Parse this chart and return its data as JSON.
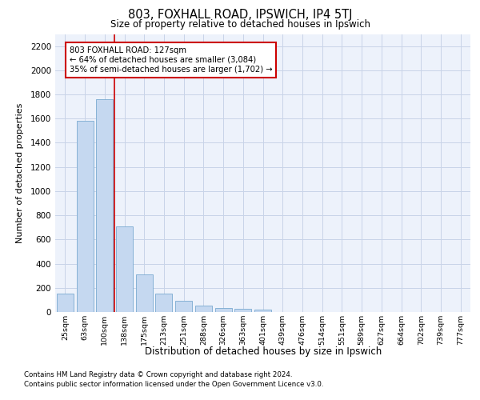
{
  "title": "803, FOXHALL ROAD, IPSWICH, IP4 5TJ",
  "subtitle": "Size of property relative to detached houses in Ipswich",
  "xlabel": "Distribution of detached houses by size in Ipswich",
  "ylabel": "Number of detached properties",
  "categories": [
    "25sqm",
    "63sqm",
    "100sqm",
    "138sqm",
    "175sqm",
    "213sqm",
    "251sqm",
    "288sqm",
    "326sqm",
    "363sqm",
    "401sqm",
    "439sqm",
    "476sqm",
    "514sqm",
    "551sqm",
    "589sqm",
    "627sqm",
    "664sqm",
    "702sqm",
    "739sqm",
    "777sqm"
  ],
  "values": [
    155,
    1580,
    1760,
    710,
    310,
    155,
    90,
    55,
    30,
    25,
    20,
    0,
    0,
    0,
    0,
    0,
    0,
    0,
    0,
    0,
    0
  ],
  "bar_color": "#c5d8f0",
  "bar_edge_color": "#7aaad0",
  "vline_color": "#cc0000",
  "vline_pos": 2.5,
  "annotation_text": "803 FOXHALL ROAD: 127sqm\n← 64% of detached houses are smaller (3,084)\n35% of semi-detached houses are larger (1,702) →",
  "annotation_box_color": "#cc0000",
  "ylim": [
    0,
    2300
  ],
  "yticks": [
    0,
    200,
    400,
    600,
    800,
    1000,
    1200,
    1400,
    1600,
    1800,
    2000,
    2200
  ],
  "grid_color": "#c8d4e8",
  "background_color": "#edf2fb",
  "footer_line1": "Contains HM Land Registry data © Crown copyright and database right 2024.",
  "footer_line2": "Contains public sector information licensed under the Open Government Licence v3.0."
}
